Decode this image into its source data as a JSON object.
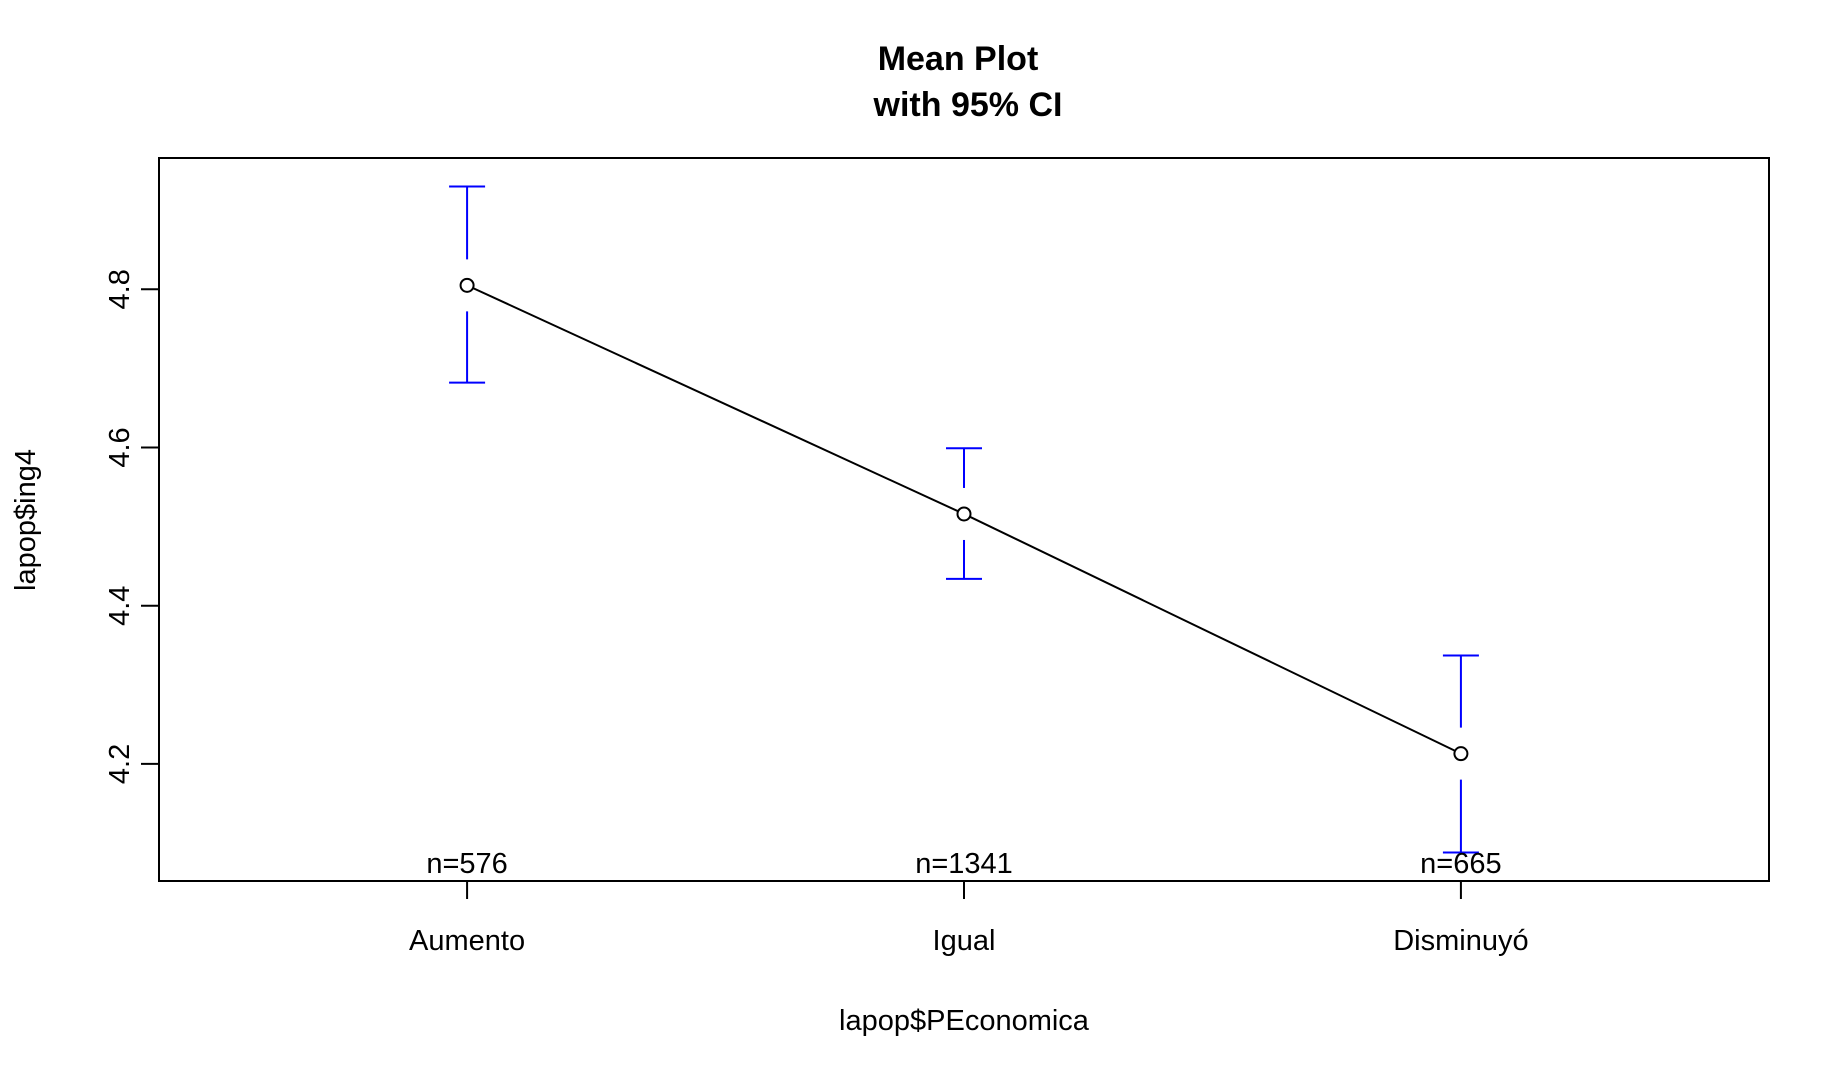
{
  "chart_data": {
    "type": "line",
    "title": "Mean Plot",
    "subtitle": "with 95% CI",
    "xlabel": "lapop$PEconomica",
    "ylabel": "lapop$ing4",
    "categories": [
      "Aumento",
      "Igual",
      "Disminuyó"
    ],
    "series": [
      {
        "values": [
          4.805,
          4.516,
          4.213
        ],
        "ci_lower": [
          4.682,
          4.434,
          4.088
        ],
        "ci_upper": [
          4.93,
          4.599,
          4.337
        ],
        "n_labels": [
          "n=576",
          "n=1341",
          "n=665"
        ]
      }
    ],
    "y_ticks": [
      4.2,
      4.4,
      4.6,
      4.8
    ],
    "y_tick_labels": [
      "4.2",
      "4.4",
      "4.6",
      "4.8"
    ],
    "ylim": [
      4.052,
      4.966
    ],
    "xlim": [
      0.38,
      3.62
    ],
    "grid": false,
    "legend": "none",
    "colors": {
      "line": "#000000",
      "error_bars": "#0000FF",
      "frame": "#000000"
    }
  }
}
